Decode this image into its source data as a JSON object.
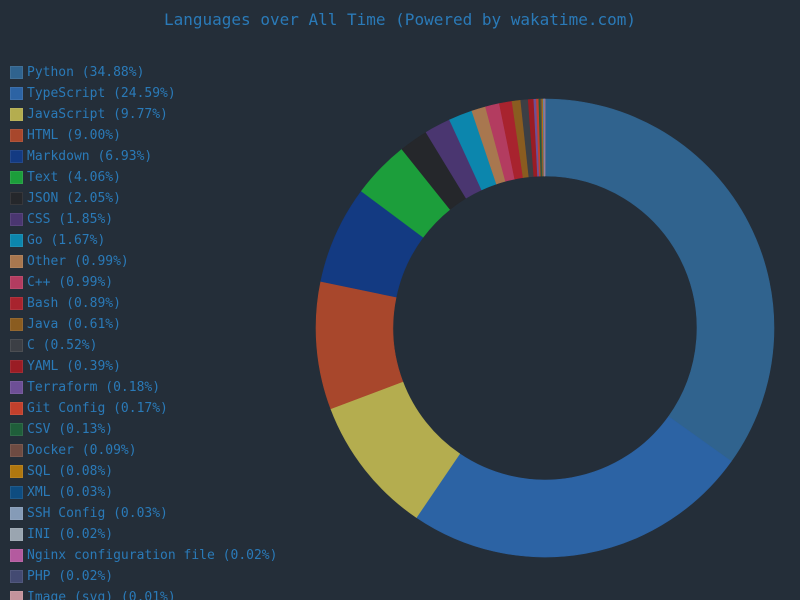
{
  "title": "Languages over All Time (Powered by wakatime.com)",
  "chart_data": {
    "type": "pie",
    "style": "donut",
    "legend_position": "left",
    "title": "Languages over All Time (Powered by wakatime.com)",
    "slices": [
      {
        "label": "Python (34.88%)",
        "name": "Python",
        "value": 34.88,
        "color": "#30638e"
      },
      {
        "label": "TypeScript (24.59%)",
        "name": "TypeScript",
        "value": 24.59,
        "color": "#2c63a4"
      },
      {
        "label": "JavaScript (9.77%)",
        "name": "JavaScript",
        "value": 9.77,
        "color": "#b4ad4f"
      },
      {
        "label": "HTML (9.00%)",
        "name": "HTML",
        "value": 9.0,
        "color": "#a8472c"
      },
      {
        "label": "Markdown (6.93%)",
        "name": "Markdown",
        "value": 6.93,
        "color": "#133a82"
      },
      {
        "label": "Text (4.06%)",
        "name": "Text",
        "value": 4.06,
        "color": "#1c9e3b"
      },
      {
        "label": "JSON (2.05%)",
        "name": "JSON",
        "value": 2.05,
        "color": "#25272b"
      },
      {
        "label": "CSS (1.85%)",
        "name": "CSS",
        "value": 1.85,
        "color": "#4a3670"
      },
      {
        "label": "Go (1.67%)",
        "name": "Go",
        "value": 1.67,
        "color": "#0c86ad"
      },
      {
        "label": "Other (0.99%)",
        "name": "Other",
        "value": 0.99,
        "color": "#a8774f"
      },
      {
        "label": "C++ (0.99%)",
        "name": "C++",
        "value": 0.99,
        "color": "#b33c60"
      },
      {
        "label": "Bash (0.89%)",
        "name": "Bash",
        "value": 0.89,
        "color": "#a8232e"
      },
      {
        "label": "Java (0.61%)",
        "name": "Java",
        "value": 0.61,
        "color": "#8a5c20"
      },
      {
        "label": "C (0.52%)",
        "name": "C",
        "value": 0.52,
        "color": "#3c3f45"
      },
      {
        "label": "YAML (0.39%)",
        "name": "YAML",
        "value": 0.39,
        "color": "#9a1c24"
      },
      {
        "label": "Terraform (0.18%)",
        "name": "Terraform",
        "value": 0.18,
        "color": "#6d4f96"
      },
      {
        "label": "Git Config (0.17%)",
        "name": "Git Config",
        "value": 0.17,
        "color": "#c2402c"
      },
      {
        "label": "CSV (0.13%)",
        "name": "CSV",
        "value": 0.13,
        "color": "#1f5e3a"
      },
      {
        "label": "Docker (0.09%)",
        "name": "Docker",
        "value": 0.09,
        "color": "#6e4b42"
      },
      {
        "label": "SQL (0.08%)",
        "name": "SQL",
        "value": 0.08,
        "color": "#b0770f"
      },
      {
        "label": "XML (0.03%)",
        "name": "XML",
        "value": 0.03,
        "color": "#0e4c80"
      },
      {
        "label": "SSH Config (0.03%)",
        "name": "SSH Config",
        "value": 0.03,
        "color": "#859bb7"
      },
      {
        "label": "INI (0.02%)",
        "name": "INI",
        "value": 0.02,
        "color": "#9aa5b0"
      },
      {
        "label": "Nginx configuration file (0.02%)",
        "name": "Nginx configuration file",
        "value": 0.02,
        "color": "#b45a9f"
      },
      {
        "label": "PHP (0.02%)",
        "name": "PHP",
        "value": 0.02,
        "color": "#434a72"
      },
      {
        "label": "Image (svg) (0.01%)",
        "name": "Image (svg)",
        "value": 0.01,
        "color": "#c4939c"
      }
    ]
  }
}
